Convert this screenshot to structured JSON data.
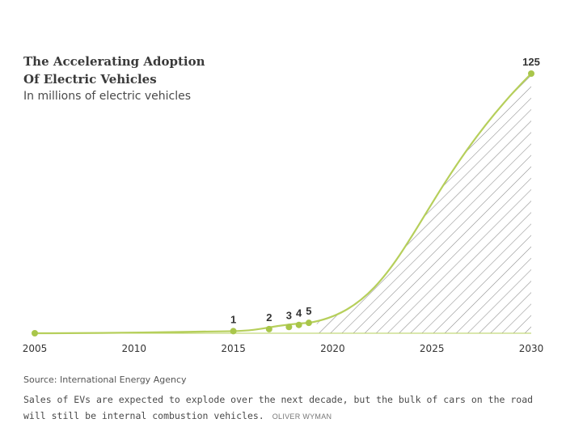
{
  "title_line1": "The Accelerating Adoption",
  "title_line2": "Of Electric Vehicles",
  "subtitle": "In millions of electric vehicles",
  "source": "Source: International Energy Agency",
  "caption": "Sales of EVs are expected to explode over the next decade, but the bulk of cars on the road will still be internal combustion vehicles.",
  "credit": "OLIVER WYMAN",
  "colors": {
    "line": "#b6cf5b",
    "point": "#a9c64a",
    "hatch": "#8a8a8a",
    "axis": "#333333"
  },
  "chart_data": {
    "type": "area",
    "title": "The Accelerating Adoption Of Electric Vehicles",
    "subtitle": "In millions of electric vehicles",
    "x_ticks": [
      2005,
      2010,
      2015,
      2020,
      2025,
      2030
    ],
    "xlim": [
      2005,
      2030
    ],
    "ylim": [
      0,
      125
    ],
    "points": [
      {
        "x": 2005,
        "y": 0,
        "label": ""
      },
      {
        "x": 2015,
        "y": 1,
        "label": "1"
      },
      {
        "x": 2016.8,
        "y": 2,
        "label": "2"
      },
      {
        "x": 2017.8,
        "y": 3,
        "label": "3"
      },
      {
        "x": 2018.3,
        "y": 4,
        "label": "4"
      },
      {
        "x": 2018.8,
        "y": 5,
        "label": "5"
      },
      {
        "x": 2030,
        "y": 125,
        "label": "125"
      }
    ],
    "shading": "hatched area under curve from 2019 to 2030",
    "grid": false,
    "legend": "none"
  }
}
